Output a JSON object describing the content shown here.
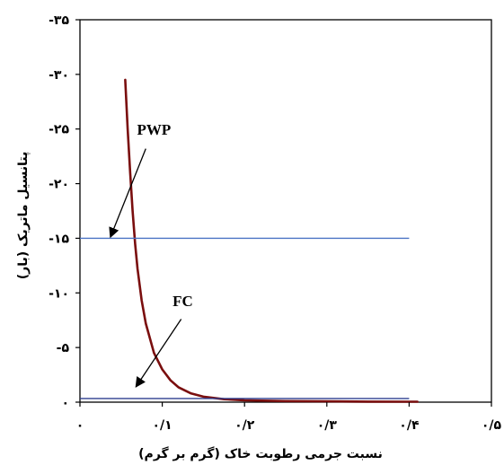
{
  "chart_data": {
    "type": "line",
    "xlabel": "نسبت  جرمی رطوبت خاک (گرم بر گرم)",
    "ylabel": "پتانسیل ماتریک (بار)",
    "xlim": [
      0,
      0.5
    ],
    "ylim": [
      0,
      -35
    ],
    "x_ticks": [
      {
        "value": 0,
        "label": "۰"
      },
      {
        "value": 0.1,
        "label": "۰/۱"
      },
      {
        "value": 0.2,
        "label": "۰/۲"
      },
      {
        "value": 0.3,
        "label": "۰/۳"
      },
      {
        "value": 0.4,
        "label": "۰/۴"
      },
      {
        "value": 0.5,
        "label": "۰/۵"
      }
    ],
    "y_ticks": [
      {
        "value": 0,
        "label": "۰"
      },
      {
        "value": -5,
        "label": "-۵"
      },
      {
        "value": -10,
        "label": "-۱۰"
      },
      {
        "value": -15,
        "label": "-۱۵"
      },
      {
        "value": -20,
        "label": "-۲۰"
      },
      {
        "value": -25,
        "label": "-۲۵"
      },
      {
        "value": -30,
        "label": "-۳۰"
      },
      {
        "value": -35,
        "label": "-۳۵"
      }
    ],
    "grid": false,
    "series": [
      {
        "type": "line",
        "color": "#7a0e0e",
        "x": [
          0.055,
          0.058,
          0.061,
          0.064,
          0.067,
          0.07,
          0.075,
          0.08,
          0.09,
          0.1,
          0.11,
          0.12,
          0.135,
          0.15,
          0.175,
          0.2,
          0.25,
          0.3,
          0.35,
          0.4,
          0.41
        ],
        "y": [
          -29.5,
          -25.0,
          -21.0,
          -17.5,
          -14.5,
          -12.2,
          -9.3,
          -7.2,
          -4.5,
          -3.0,
          -2.0,
          -1.35,
          -0.8,
          -0.5,
          -0.27,
          -0.17,
          -0.1,
          -0.07,
          -0.05,
          -0.04,
          -0.04
        ]
      },
      {
        "type": "hline",
        "name": "PWP",
        "color": "#4a73c4",
        "y": -15,
        "x_range": [
          0,
          0.4
        ]
      },
      {
        "type": "hline",
        "name": "FC",
        "color": "#2f3f8f",
        "y": -0.33,
        "x_range": [
          0,
          0.4
        ]
      }
    ],
    "annotations": [
      {
        "text": "PWP",
        "text_x": 0.09,
        "text_y": -24.5,
        "arrow_from": [
          0.08,
          -23.2
        ],
        "arrow_to": [
          0.037,
          -15.1
        ]
      },
      {
        "text": "FC",
        "text_x": 0.125,
        "text_y": -8.8,
        "arrow_from": [
          0.123,
          -7.6
        ],
        "arrow_to": [
          0.068,
          -1.4
        ]
      }
    ]
  }
}
